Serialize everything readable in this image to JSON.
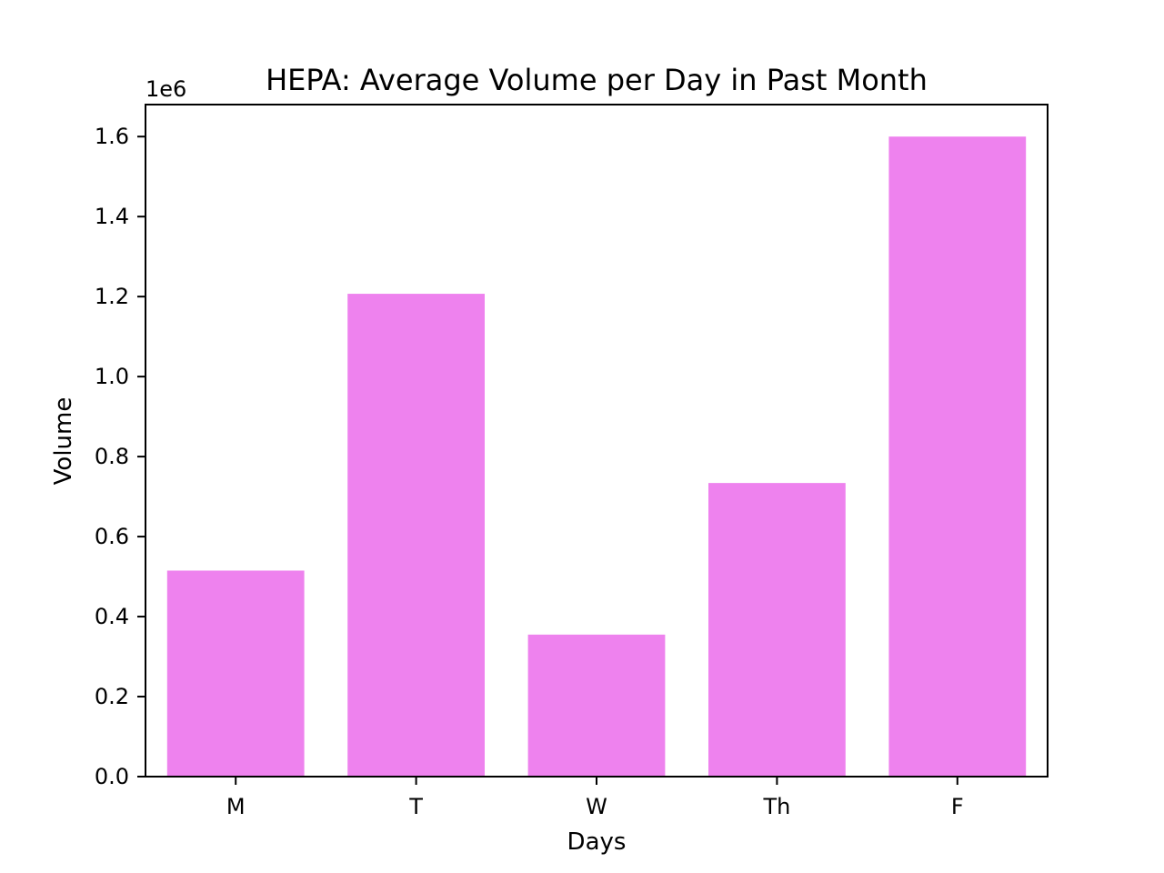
{
  "chart_data": {
    "type": "bar",
    "title": "HEPA: Average Volume per Day in Past Month",
    "xlabel": "Days",
    "ylabel": "Volume",
    "y_offset_label": "1e6",
    "y_scale_factor": 1000000,
    "categories": [
      "M",
      "T",
      "W",
      "Th",
      "F"
    ],
    "values": [
      515000,
      1207000,
      355000,
      734000,
      1600000
    ],
    "ylim": [
      0,
      1680000
    ],
    "y_ticks": [
      0,
      200000,
      400000,
      600000,
      800000,
      1000000,
      1200000,
      1400000,
      1600000
    ],
    "y_tick_labels": [
      "0.0",
      "0.2",
      "0.4",
      "0.6",
      "0.8",
      "1.0",
      "1.2",
      "1.4",
      "1.6"
    ],
    "bar_color": "#ee82ee",
    "grid": false,
    "legend": "none"
  }
}
